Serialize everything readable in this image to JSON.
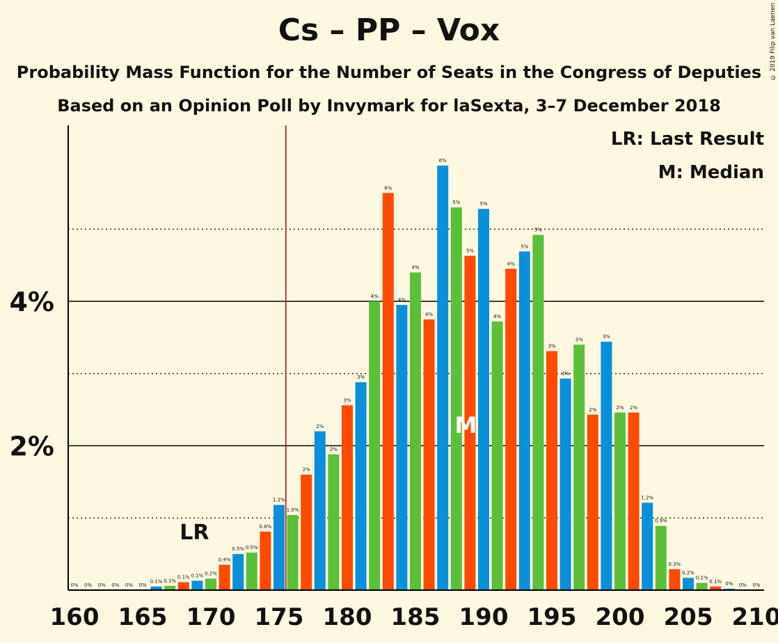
{
  "title": "Cs – PP – Vox",
  "subtitle1": "Probability Mass Function for the Number of Seats in the Congress of Deputies",
  "subtitle2": "Based on an Opinion Poll by Invymark for laSexta, 3–7 December 2018",
  "copyright": "© 2019 Filip van Laenen",
  "legend": {
    "lr": "LR: Last Result",
    "m": "M: Median"
  },
  "colors": {
    "blue": "#0A8FD9",
    "green": "#5BBF3B",
    "orange": "#FF4A00",
    "majority_line": "#CC0000",
    "background": "#FFF8E1"
  },
  "chart_data": {
    "type": "bar",
    "x": [
      160,
      161,
      162,
      163,
      164,
      165,
      166,
      167,
      168,
      169,
      170,
      171,
      172,
      173,
      174,
      175,
      176,
      177,
      178,
      179,
      180,
      181,
      182,
      183,
      184,
      185,
      186,
      187,
      188,
      189,
      190,
      191,
      192,
      193,
      194,
      195,
      196,
      197,
      198,
      199,
      200,
      201,
      202,
      203,
      204,
      205,
      206,
      207,
      208,
      209,
      210
    ],
    "values": [
      0,
      0,
      0,
      0,
      0,
      0,
      0.05,
      0.06,
      0.11,
      0.13,
      0.16,
      0.35,
      0.5,
      0.52,
      0.81,
      1.18,
      1.04,
      1.6,
      2.2,
      1.88,
      2.56,
      2.88,
      4.0,
      5.5,
      3.95,
      4.4,
      3.75,
      5.88,
      5.3,
      4.63,
      5.28,
      3.72,
      4.45,
      4.69,
      4.92,
      3.31,
      2.93,
      3.4,
      2.43,
      3.44,
      2.46,
      2.46,
      1.21,
      0.89,
      0.29,
      0.17,
      0.1,
      0.05,
      0.02,
      0,
      0
    ],
    "labels": [
      "0%",
      "0%",
      "0%",
      "0%",
      "0%",
      "0%",
      "0.1%",
      "0.1%",
      "0.1%",
      "0.1%",
      "0.2%",
      "0.4%",
      "0.5%",
      "0.5%",
      "0.8%",
      "1.2%",
      "1.0%",
      "2%",
      "2%",
      "2%",
      "3%",
      "3%",
      "4%",
      "6%",
      "4%",
      "4%",
      "4%",
      "6%",
      "5%",
      "5%",
      "5%",
      "4%",
      "4%",
      "5%",
      "5%",
      "3%",
      "3%",
      "3%",
      "2%",
      "3%",
      "2%",
      "2%",
      "1.2%",
      "0.9%",
      "0.3%",
      "0.2%",
      "0.1%",
      "0.1%",
      "0%",
      "0%",
      "0%"
    ],
    "xticks": [
      160,
      165,
      170,
      175,
      180,
      185,
      190,
      195,
      200,
      205,
      210
    ],
    "yticks": [
      {
        "value": 2,
        "label": "2%"
      },
      {
        "value": 4,
        "label": "4%"
      }
    ],
    "ylim": [
      0,
      6.4
    ],
    "xlim": [
      160,
      210
    ],
    "majority_line": 175.5,
    "last_result": 169,
    "last_result_label": "LR",
    "median": 189,
    "median_label": "M",
    "grid": "solid at labelled ticks, dotted at odd percents"
  }
}
